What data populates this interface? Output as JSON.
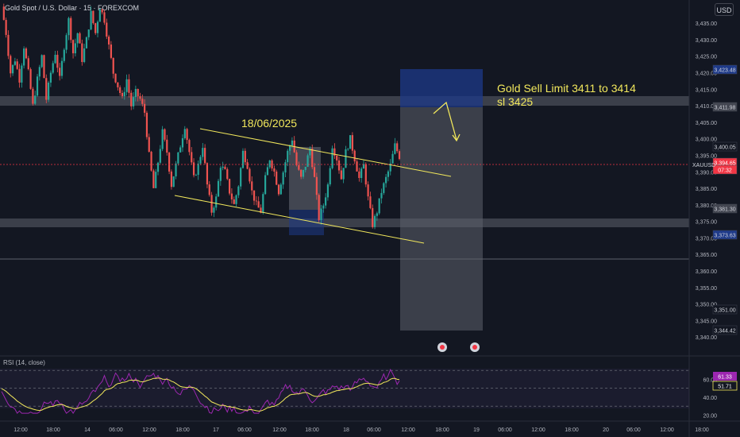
{
  "header": {
    "symbol_title": "Gold Spot / U.S. Dollar · 15 · FOREXCOM",
    "currency": "USD"
  },
  "annotations": {
    "date_label": "18/06/2025",
    "trade_line1": "Gold Sell Limit 3411 to 3414",
    "trade_line2": "sl 3425"
  },
  "price_badges": [
    {
      "value": "3,423.48",
      "bg": "#1e3a8a",
      "fg": "#d1d4dc"
    },
    {
      "value": "3,411.98",
      "bg": "#434651",
      "fg": "#d1d4dc"
    },
    {
      "value": "3,400.05",
      "bg": "#131722",
      "fg": "#d1d4dc"
    },
    {
      "value": "3,394.65",
      "bg": "#f23645",
      "fg": "#ffffff"
    },
    {
      "value": "07:32",
      "bg": "#f23645",
      "fg": "#ffffff"
    },
    {
      "value": "3,381.30",
      "bg": "#434651",
      "fg": "#d1d4dc"
    },
    {
      "value": "3,373.63",
      "bg": "#1e3a8a",
      "fg": "#d1d4dc"
    },
    {
      "value": "3,351.00",
      "bg": "#131722",
      "fg": "#d1d4dc"
    },
    {
      "value": "3,344.42",
      "bg": "#131722",
      "fg": "#d1d4dc"
    }
  ],
  "symbol_tag": "XAUUSD",
  "rsi": {
    "label": "RSI (14, close)",
    "badge_rsi": "61.33",
    "badge_ma": "51.71",
    "levels": [
      70,
      50,
      30
    ],
    "ticks": [
      "60.00",
      "40.00",
      "20.00"
    ]
  },
  "colors": {
    "up": "#26a69a",
    "down": "#ef5350",
    "channel": "#f2e85c",
    "zone_blue": "#1e3a8a",
    "zone_gray": "#434651",
    "rsi_line": "#9c27b0",
    "rsi_ma": "#f2e85c"
  },
  "chart_data": {
    "type": "candlestick",
    "title": "Gold Spot / U.S. Dollar · 15 · FOREXCOM",
    "ylim": [
      3335,
      3442
    ],
    "y_ticks": [
      "3,435.00",
      "3,430.00",
      "3,425.00",
      "3,420.00",
      "3,415.00",
      "3,410.00",
      "3,405.00",
      "3,400.00",
      "3,395.00",
      "3,390.00",
      "3,385.00",
      "3,380.00",
      "3,375.00",
      "3,370.00",
      "3,365.00",
      "3,360.00",
      "3,355.00",
      "3,350.00",
      "3,345.00",
      "3,340.00"
    ],
    "x_ticks": [
      "12:00",
      "18:00",
      "14",
      "06:00",
      "12:00",
      "18:00",
      "17",
      "06:00",
      "12:00",
      "18:00",
      "18",
      "06:00",
      "12:00",
      "18:00",
      "19",
      "06:00",
      "12:00",
      "18:00",
      "20",
      "06:00",
      "12:00",
      "18:00"
    ],
    "close_path": [
      [
        0,
        3440
      ],
      [
        2,
        3432
      ],
      [
        4,
        3420
      ],
      [
        6,
        3424
      ],
      [
        8,
        3418
      ],
      [
        10,
        3428
      ],
      [
        12,
        3420
      ],
      [
        14,
        3410
      ],
      [
        16,
        3418
      ],
      [
        18,
        3425
      ],
      [
        20,
        3412
      ],
      [
        22,
        3420
      ],
      [
        24,
        3426
      ],
      [
        26,
        3418
      ],
      [
        28,
        3428
      ],
      [
        30,
        3436
      ],
      [
        32,
        3426
      ],
      [
        34,
        3432
      ],
      [
        36,
        3424
      ],
      [
        38,
        3430
      ],
      [
        40,
        3438
      ],
      [
        42,
        3432
      ],
      [
        44,
        3440
      ],
      [
        46,
        3436
      ],
      [
        48,
        3428
      ],
      [
        50,
        3420
      ],
      [
        52,
        3416
      ],
      [
        54,
        3412
      ],
      [
        56,
        3418
      ],
      [
        58,
        3410
      ],
      [
        60,
        3414
      ],
      [
        62,
        3412
      ],
      [
        64,
        3408
      ],
      [
        66,
        3395
      ],
      [
        68,
        3385
      ],
      [
        70,
        3393
      ],
      [
        72,
        3402
      ],
      [
        74,
        3396
      ],
      [
        76,
        3386
      ],
      [
        78,
        3392
      ],
      [
        80,
        3398
      ],
      [
        82,
        3404
      ],
      [
        84,
        3396
      ],
      [
        86,
        3388
      ],
      [
        88,
        3392
      ],
      [
        90,
        3398
      ],
      [
        92,
        3386
      ],
      [
        94,
        3378
      ],
      [
        96,
        3382
      ],
      [
        98,
        3392
      ],
      [
        100,
        3390
      ],
      [
        102,
        3384
      ],
      [
        104,
        3380
      ],
      [
        106,
        3386
      ],
      [
        108,
        3396
      ],
      [
        110,
        3392
      ],
      [
        112,
        3384
      ],
      [
        114,
        3380
      ],
      [
        116,
        3378
      ],
      [
        118,
        3388
      ],
      [
        120,
        3394
      ],
      [
        122,
        3390
      ],
      [
        124,
        3384
      ],
      [
        126,
        3390
      ],
      [
        128,
        3396
      ],
      [
        130,
        3400
      ],
      [
        132,
        3392
      ],
      [
        134,
        3388
      ],
      [
        136,
        3392
      ],
      [
        138,
        3397
      ],
      [
        140,
        3388
      ],
      [
        142,
        3376
      ],
      [
        144,
        3380
      ],
      [
        146,
        3386
      ],
      [
        148,
        3398
      ],
      [
        150,
        3394
      ],
      [
        152,
        3388
      ],
      [
        154,
        3396
      ],
      [
        156,
        3400
      ],
      [
        158,
        3394
      ],
      [
        160,
        3388
      ],
      [
        162,
        3392
      ],
      [
        164,
        3382
      ],
      [
        166,
        3374
      ],
      [
        168,
        3378
      ],
      [
        170,
        3384
      ],
      [
        172,
        3388
      ],
      [
        174,
        3392
      ],
      [
        176,
        3398
      ],
      [
        178,
        3394.65
      ]
    ],
    "candle_count": 179,
    "channel_upper": [
      [
        3404.5,
        0.0
      ],
      [
        3390.5,
        1.0
      ]
    ],
    "channel_lower": [
      [
        3383.5,
        0.0
      ],
      [
        3370.5,
        1.0
      ]
    ],
    "rsi_ylim": [
      15,
      80
    ],
    "rsi_levels": [
      70,
      50,
      30
    ]
  }
}
